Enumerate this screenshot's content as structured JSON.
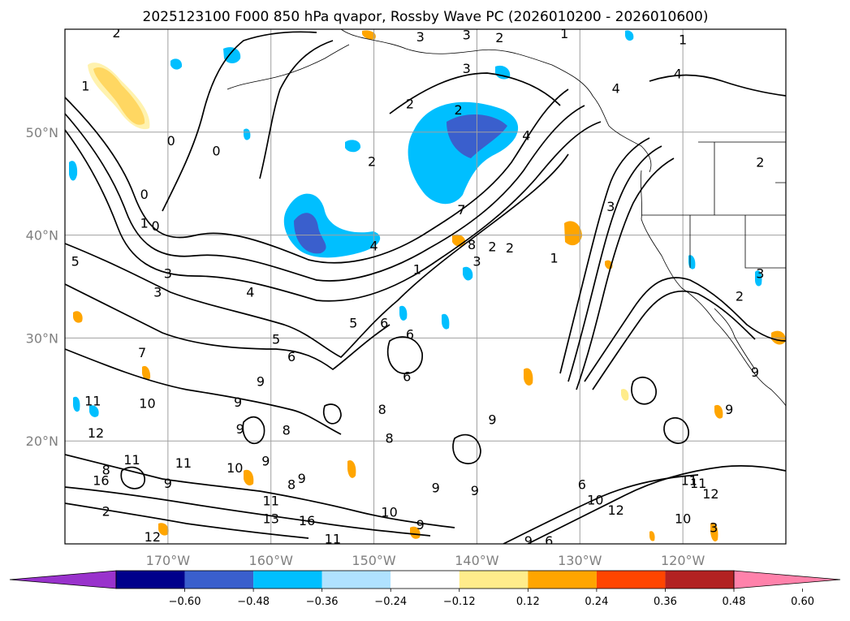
{
  "title": "2025123100 F000 850 hPa qvapor, Rossby Wave PC (2026010200 - 2026010600)",
  "map": {
    "lon_range": [
      -180,
      -110
    ],
    "lat_range": [
      10,
      60
    ],
    "lon_ticks": [
      {
        "value": -170,
        "label": "170°W"
      },
      {
        "value": -160,
        "label": "160°W"
      },
      {
        "value": -150,
        "label": "150°W"
      },
      {
        "value": -140,
        "label": "140°W"
      },
      {
        "value": -130,
        "label": "130°W"
      },
      {
        "value": -120,
        "label": "120°W"
      }
    ],
    "lat_ticks": [
      {
        "value": 50,
        "label": "50°N"
      },
      {
        "value": 40,
        "label": "40°N"
      },
      {
        "value": 30,
        "label": "30°N"
      },
      {
        "value": 20,
        "label": "20°N"
      }
    ],
    "grid": true,
    "gridline_color": "#a0a0a0",
    "contour_labels": [
      {
        "text": "2",
        "lon": -175,
        "lat": 59.7
      },
      {
        "text": "3",
        "lon": -145.5,
        "lat": 59.3
      },
      {
        "text": "3",
        "lon": -141,
        "lat": 59.5
      },
      {
        "text": "2",
        "lon": -137.8,
        "lat": 59.2
      },
      {
        "text": "1",
        "lon": -131.5,
        "lat": 59.6
      },
      {
        "text": "1",
        "lon": -120,
        "lat": 59
      },
      {
        "text": "3",
        "lon": -141,
        "lat": 56.2
      },
      {
        "text": "4",
        "lon": -120.5,
        "lat": 55.7
      },
      {
        "text": "4",
        "lon": -126.5,
        "lat": 54.3
      },
      {
        "text": "1",
        "lon": -178,
        "lat": 54.5
      },
      {
        "text": "2",
        "lon": -146.5,
        "lat": 52.8
      },
      {
        "text": "2",
        "lon": -141.8,
        "lat": 52.2
      },
      {
        "text": "4",
        "lon": -135.2,
        "lat": 49.7
      },
      {
        "text": "0",
        "lon": -169.7,
        "lat": 49.2
      },
      {
        "text": "0",
        "lon": -165.3,
        "lat": 48.2
      },
      {
        "text": "2",
        "lon": -150.2,
        "lat": 47.2
      },
      {
        "text": "2",
        "lon": -112.5,
        "lat": 47.1
      },
      {
        "text": "0",
        "lon": -172.3,
        "lat": 44
      },
      {
        "text": "7",
        "lon": -141.5,
        "lat": 42.5
      },
      {
        "text": "3",
        "lon": -127,
        "lat": 42.8
      },
      {
        "text": "1",
        "lon": -172.3,
        "lat": 41.2
      },
      {
        "text": "0",
        "lon": -171.2,
        "lat": 40.9
      },
      {
        "text": "8",
        "lon": -140.5,
        "lat": 39.1
      },
      {
        "text": "2",
        "lon": -138.5,
        "lat": 38.9
      },
      {
        "text": "2",
        "lon": -136.8,
        "lat": 38.8
      },
      {
        "text": "4",
        "lon": -150,
        "lat": 39
      },
      {
        "text": "5",
        "lon": -179,
        "lat": 37.5
      },
      {
        "text": "3",
        "lon": -170,
        "lat": 36.3
      },
      {
        "text": "1",
        "lon": -132.5,
        "lat": 37.8
      },
      {
        "text": "3",
        "lon": -140,
        "lat": 37.5
      },
      {
        "text": "1",
        "lon": -145.8,
        "lat": 36.7
      },
      {
        "text": "3",
        "lon": -112.5,
        "lat": 36.3
      },
      {
        "text": "2",
        "lon": -114.5,
        "lat": 34.1
      },
      {
        "text": "4",
        "lon": -162,
        "lat": 34.5
      },
      {
        "text": "3",
        "lon": -171,
        "lat": 34.5
      },
      {
        "text": "5",
        "lon": -152,
        "lat": 31.5
      },
      {
        "text": "6",
        "lon": -149,
        "lat": 31.5
      },
      {
        "text": "6",
        "lon": -146.5,
        "lat": 30.4
      },
      {
        "text": "5",
        "lon": -159.5,
        "lat": 29.9
      },
      {
        "text": "7",
        "lon": -172.5,
        "lat": 28.6
      },
      {
        "text": "6",
        "lon": -158,
        "lat": 28.2
      },
      {
        "text": "6",
        "lon": -146.8,
        "lat": 26.3
      },
      {
        "text": "9",
        "lon": -161,
        "lat": 25.8
      },
      {
        "text": "9",
        "lon": -113,
        "lat": 26.7
      },
      {
        "text": "11",
        "lon": -177.3,
        "lat": 23.9
      },
      {
        "text": "10",
        "lon": -172,
        "lat": 23.7
      },
      {
        "text": "9",
        "lon": -163.2,
        "lat": 23.8
      },
      {
        "text": "8",
        "lon": -149.2,
        "lat": 23.1
      },
      {
        "text": "9",
        "lon": -138.5,
        "lat": 22.1
      },
      {
        "text": "9",
        "lon": -115.5,
        "lat": 23.1
      },
      {
        "text": "12",
        "lon": -177,
        "lat": 20.8
      },
      {
        "text": "9",
        "lon": -163,
        "lat": 21.2
      },
      {
        "text": "8",
        "lon": -148.5,
        "lat": 20.3
      },
      {
        "text": "8",
        "lon": -158.5,
        "lat": 21.1
      },
      {
        "text": "11",
        "lon": -173.5,
        "lat": 18.2
      },
      {
        "text": "8",
        "lon": -176,
        "lat": 17.2
      },
      {
        "text": "10",
        "lon": -163.5,
        "lat": 17.4
      },
      {
        "text": "11",
        "lon": -168.5,
        "lat": 17.9
      },
      {
        "text": "9",
        "lon": -160.5,
        "lat": 18.1
      },
      {
        "text": "16",
        "lon": -176.5,
        "lat": 16.2
      },
      {
        "text": "9",
        "lon": -170,
        "lat": 15.9
      },
      {
        "text": "8",
        "lon": -158,
        "lat": 15.8
      },
      {
        "text": "9",
        "lon": -157,
        "lat": 16.4
      },
      {
        "text": "9",
        "lon": -144,
        "lat": 15.5
      },
      {
        "text": "11",
        "lon": -119.4,
        "lat": 16.2
      },
      {
        "text": "11",
        "lon": -118.5,
        "lat": 15.9
      },
      {
        "text": "6",
        "lon": -129.8,
        "lat": 15.8
      },
      {
        "text": "9",
        "lon": -140.2,
        "lat": 15.2
      },
      {
        "text": "11",
        "lon": -160,
        "lat": 14.2
      },
      {
        "text": "12",
        "lon": -117.3,
        "lat": 14.9
      },
      {
        "text": "10",
        "lon": -128.5,
        "lat": 14.3
      },
      {
        "text": "10",
        "lon": -148.5,
        "lat": 13.1
      },
      {
        "text": "2",
        "lon": -176,
        "lat": 13.2
      },
      {
        "text": "12",
        "lon": -126.5,
        "lat": 13.3
      },
      {
        "text": "13",
        "lon": -160,
        "lat": 12.5
      },
      {
        "text": "16",
        "lon": -156.5,
        "lat": 12.3
      },
      {
        "text": "9",
        "lon": -145.5,
        "lat": 11.9
      },
      {
        "text": "10",
        "lon": -120,
        "lat": 12.5
      },
      {
        "text": "3",
        "lon": -117,
        "lat": 11.6
      },
      {
        "text": "12",
        "lon": -171.5,
        "lat": 10.7
      },
      {
        "text": "11",
        "lon": -154,
        "lat": 10.5
      },
      {
        "text": "9",
        "lon": -135,
        "lat": 10.3
      },
      {
        "text": "6",
        "lon": -133,
        "lat": 10.3
      }
    ]
  },
  "colorbar": {
    "colors": [
      "#9932cc",
      "#00008b",
      "#3a5fcd",
      "#00bfff",
      "#b0e2ff",
      "#ffffff",
      "#ffec8b",
      "#ffa500",
      "#ff4500",
      "#b22222",
      "#ff82ab"
    ],
    "tick_labels": [
      "−0.60",
      "−0.48",
      "−0.36",
      "−0.24",
      "−0.12",
      "0.12",
      "0.24",
      "0.36",
      "0.48",
      "0.60"
    ]
  }
}
